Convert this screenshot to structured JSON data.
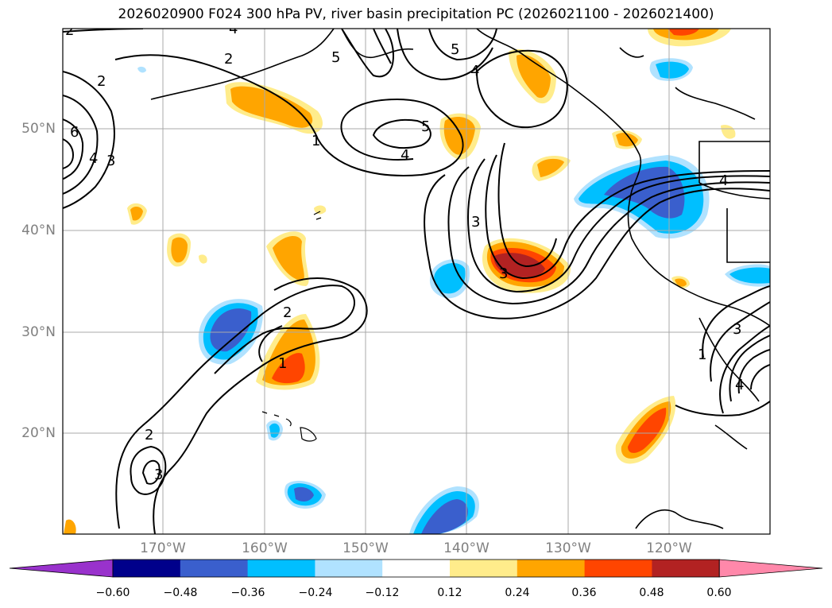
{
  "title": "2026020900 F024 300 hPa PV, river basin precipitation PC (2026021100 - 2026021400)",
  "lat_labels": [
    "50°N",
    "40°N",
    "30°N",
    "20°N"
  ],
  "lon_labels": [
    "170°W",
    "160°W",
    "150°W",
    "140°W",
    "130°W",
    "120°W"
  ],
  "colorbar": {
    "ticks": [
      "−0.60",
      "−0.48",
      "−0.36",
      "−0.24",
      "−0.12",
      "0.12",
      "0.24",
      "0.36",
      "0.48",
      "0.60"
    ],
    "colors": [
      "#9932cc",
      "#00008b",
      "#3a5fcd",
      "#00bfff",
      "#b0e2ff",
      "#ffffff",
      "#ffec8b",
      "#ffa500",
      "#ff4500",
      "#b22222",
      "#ff88aa"
    ]
  },
  "contour_labels": [
    "2",
    "2",
    "2",
    "4",
    "6",
    "3",
    "1",
    "4",
    "5",
    "5",
    "4",
    "3",
    "3",
    "4",
    "5",
    "4",
    "2",
    "1",
    "2",
    "3",
    "1",
    "3",
    "4"
  ]
}
